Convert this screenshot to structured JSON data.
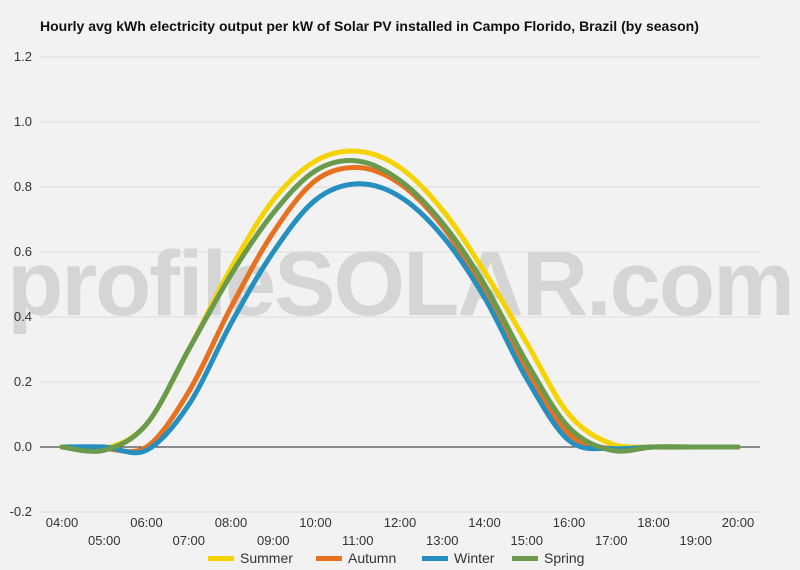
{
  "chart_data": {
    "type": "line",
    "title": "Hourly avg kWh electricity output per kW of Solar PV installed in Campo Florido, Brazil (by season)",
    "xlabel": "",
    "ylabel": "",
    "x": [
      "04:00",
      "05:00",
      "06:00",
      "07:00",
      "08:00",
      "09:00",
      "10:00",
      "11:00",
      "12:00",
      "13:00",
      "14:00",
      "15:00",
      "16:00",
      "17:00",
      "18:00",
      "19:00",
      "20:00"
    ],
    "ylim": [
      -0.2,
      1.2
    ],
    "yticks": [
      "1.2",
      "1.0",
      "0.8",
      "0.6",
      "0.4",
      "0.2",
      "0.0",
      "-0.2"
    ],
    "grid": true,
    "legend_position": "bottom",
    "series": [
      {
        "name": "Summer",
        "color": "#f5d300",
        "values": [
          0.0,
          -0.005,
          0.07,
          0.3,
          0.55,
          0.76,
          0.88,
          0.91,
          0.86,
          0.73,
          0.54,
          0.32,
          0.1,
          0.01,
          0.0,
          0.0,
          0.0
        ]
      },
      {
        "name": "Autumn",
        "color": "#e8711f",
        "values": [
          0.0,
          -0.005,
          0.0,
          0.17,
          0.43,
          0.66,
          0.82,
          0.86,
          0.81,
          0.68,
          0.48,
          0.24,
          0.04,
          -0.005,
          0.0,
          0.0,
          0.0
        ]
      },
      {
        "name": "Winter",
        "color": "#2590c0",
        "values": [
          0.0,
          0.0,
          -0.01,
          0.13,
          0.38,
          0.6,
          0.76,
          0.81,
          0.77,
          0.65,
          0.46,
          0.21,
          0.02,
          -0.005,
          0.0,
          0.0,
          0.0
        ]
      },
      {
        "name": "Spring",
        "color": "#6a9a4e",
        "values": [
          0.0,
          -0.01,
          0.07,
          0.3,
          0.53,
          0.72,
          0.85,
          0.88,
          0.82,
          0.69,
          0.5,
          0.26,
          0.06,
          -0.01,
          0.0,
          0.0,
          0.0
        ]
      }
    ]
  },
  "watermark": "profileSOLAR.com"
}
